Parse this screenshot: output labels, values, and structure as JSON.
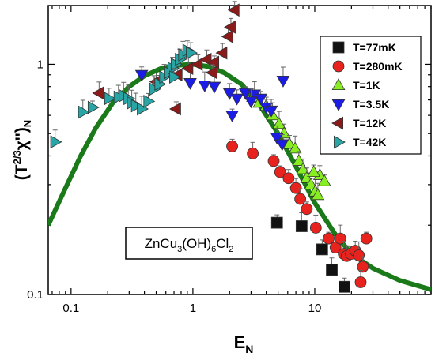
{
  "chart_data": {
    "type": "scatter",
    "title": "",
    "xlabel": "E",
    "xlabel_sub": "N",
    "ylabel_pre": "(T",
    "ylabel_sup": "2/3",
    "ylabel_mid": "χ'')",
    "ylabel_sub": "N",
    "x_scale": "log",
    "y_scale": "log",
    "xlim": [
      0.065,
      90
    ],
    "ylim": [
      0.1,
      1.8
    ],
    "x_ticks": [
      {
        "value": 0.1,
        "label": "0.1"
      },
      {
        "value": 1,
        "label": "1"
      },
      {
        "value": 10,
        "label": "10"
      }
    ],
    "y_ticks": [
      {
        "value": 0.1,
        "label": "0.1"
      },
      {
        "value": 1,
        "label": "1"
      }
    ],
    "grid": false,
    "legend_position": "top-right",
    "annotation": {
      "parts": [
        "ZnCu",
        "3",
        "(OH)",
        "6",
        "Cl",
        "2"
      ]
    },
    "colors": {
      "axis": "#000000",
      "fit_curve": "#1a7a1a"
    },
    "fit_curve": {
      "name": "",
      "color": "#1a7a1a",
      "points": [
        [
          0.065,
          0.2
        ],
        [
          0.09,
          0.29
        ],
        [
          0.12,
          0.4
        ],
        [
          0.16,
          0.53
        ],
        [
          0.22,
          0.68
        ],
        [
          0.3,
          0.8
        ],
        [
          0.4,
          0.89
        ],
        [
          0.55,
          0.96
        ],
        [
          0.75,
          0.99
        ],
        [
          1.0,
          1.0
        ],
        [
          1.3,
          0.98
        ],
        [
          1.8,
          0.92
        ],
        [
          2.5,
          0.82
        ],
        [
          3.5,
          0.67
        ],
        [
          5.0,
          0.5
        ],
        [
          7.0,
          0.36
        ],
        [
          10.0,
          0.25
        ],
        [
          15.0,
          0.18
        ],
        [
          20.0,
          0.15
        ],
        [
          30.0,
          0.13
        ],
        [
          50.0,
          0.115
        ],
        [
          90.0,
          0.105
        ]
      ]
    },
    "series": [
      {
        "name": "T=77mK",
        "marker": "square",
        "color": "#111111",
        "points": [
          [
            4.9,
            0.205
          ],
          [
            7.8,
            0.198
          ],
          [
            11.5,
            0.157
          ],
          [
            13.8,
            0.128
          ],
          [
            17.5,
            0.108
          ]
        ]
      },
      {
        "name": "T=280mK",
        "marker": "circle",
        "color": "#e8231e",
        "points": [
          [
            2.1,
            0.44
          ],
          [
            3.1,
            0.41
          ],
          [
            4.6,
            0.38
          ],
          [
            5.2,
            0.34
          ],
          [
            6.1,
            0.32
          ],
          [
            7.0,
            0.29
          ],
          [
            7.6,
            0.26
          ],
          [
            8.6,
            0.235
          ],
          [
            10.2,
            0.195
          ],
          [
            13.0,
            0.175
          ],
          [
            14.8,
            0.16
          ],
          [
            16.2,
            0.175
          ],
          [
            17.3,
            0.15
          ],
          [
            18.3,
            0.147
          ],
          [
            19.8,
            0.15
          ],
          [
            21.5,
            0.155
          ],
          [
            23.0,
            0.148
          ],
          [
            24.8,
            0.132
          ],
          [
            23.8,
            0.113
          ],
          [
            26.5,
            0.175
          ]
        ]
      },
      {
        "name": "T=1K",
        "marker": "triangle-up",
        "color": "#88ee22",
        "points": [
          [
            3.1,
            0.72
          ],
          [
            3.5,
            0.68
          ],
          [
            4.0,
            0.66
          ],
          [
            4.5,
            0.6
          ],
          [
            5.1,
            0.55
          ],
          [
            5.6,
            0.5
          ],
          [
            6.2,
            0.45
          ],
          [
            6.9,
            0.43
          ],
          [
            7.4,
            0.38
          ],
          [
            8.0,
            0.35
          ],
          [
            8.6,
            0.32
          ],
          [
            9.3,
            0.3
          ],
          [
            10.1,
            0.28
          ],
          [
            11.0,
            0.33
          ],
          [
            12.0,
            0.31
          ],
          [
            9.8,
            0.34
          ],
          [
            10.6,
            0.27
          ]
        ]
      },
      {
        "name": "T=3.5K",
        "marker": "triangle-down",
        "color": "#1c1ce8",
        "points": [
          [
            0.38,
            0.9
          ],
          [
            0.95,
            0.83
          ],
          [
            1.25,
            0.81
          ],
          [
            1.5,
            0.8
          ],
          [
            2.0,
            0.75
          ],
          [
            2.3,
            0.71
          ],
          [
            2.7,
            0.75
          ],
          [
            3.2,
            0.74
          ],
          [
            3.6,
            0.71
          ],
          [
            4.0,
            0.65
          ],
          [
            4.4,
            0.63
          ],
          [
            4.9,
            0.48
          ],
          [
            5.4,
            0.45
          ],
          [
            2.1,
            0.6
          ],
          [
            5.5,
            0.85
          ],
          [
            3.0,
            0.69
          ]
        ]
      },
      {
        "name": "T=12K",
        "marker": "triangle-left",
        "color": "#8b1a1a",
        "points": [
          [
            0.17,
            0.75
          ],
          [
            0.5,
            0.84
          ],
          [
            0.75,
            0.9
          ],
          [
            0.92,
            0.96
          ],
          [
            1.1,
            1.0
          ],
          [
            1.3,
            1.05
          ],
          [
            1.5,
            1.02
          ],
          [
            1.75,
            1.12
          ],
          [
            1.95,
            1.32
          ],
          [
            2.05,
            1.45
          ],
          [
            2.2,
            1.72
          ],
          [
            0.73,
            0.64
          ],
          [
            1.45,
            0.92
          ]
        ]
      },
      {
        "name": "T=42K",
        "marker": "triangle-right",
        "color": "#2aa5a5",
        "points": [
          [
            0.074,
            0.46
          ],
          [
            0.125,
            0.62
          ],
          [
            0.15,
            0.65
          ],
          [
            0.205,
            0.71
          ],
          [
            0.245,
            0.72
          ],
          [
            0.27,
            0.73
          ],
          [
            0.295,
            0.71
          ],
          [
            0.315,
            0.68
          ],
          [
            0.34,
            0.66
          ],
          [
            0.38,
            0.64
          ],
          [
            0.43,
            0.69
          ],
          [
            0.48,
            0.78
          ],
          [
            0.53,
            0.82
          ],
          [
            0.58,
            0.88
          ],
          [
            0.63,
            0.92
          ],
          [
            0.68,
            0.96
          ],
          [
            0.72,
            1.0
          ],
          [
            0.78,
            1.05
          ],
          [
            0.83,
            1.1
          ],
          [
            0.9,
            1.15
          ],
          [
            0.96,
            1.12
          ],
          [
            0.7,
            0.88
          ]
        ]
      }
    ]
  }
}
